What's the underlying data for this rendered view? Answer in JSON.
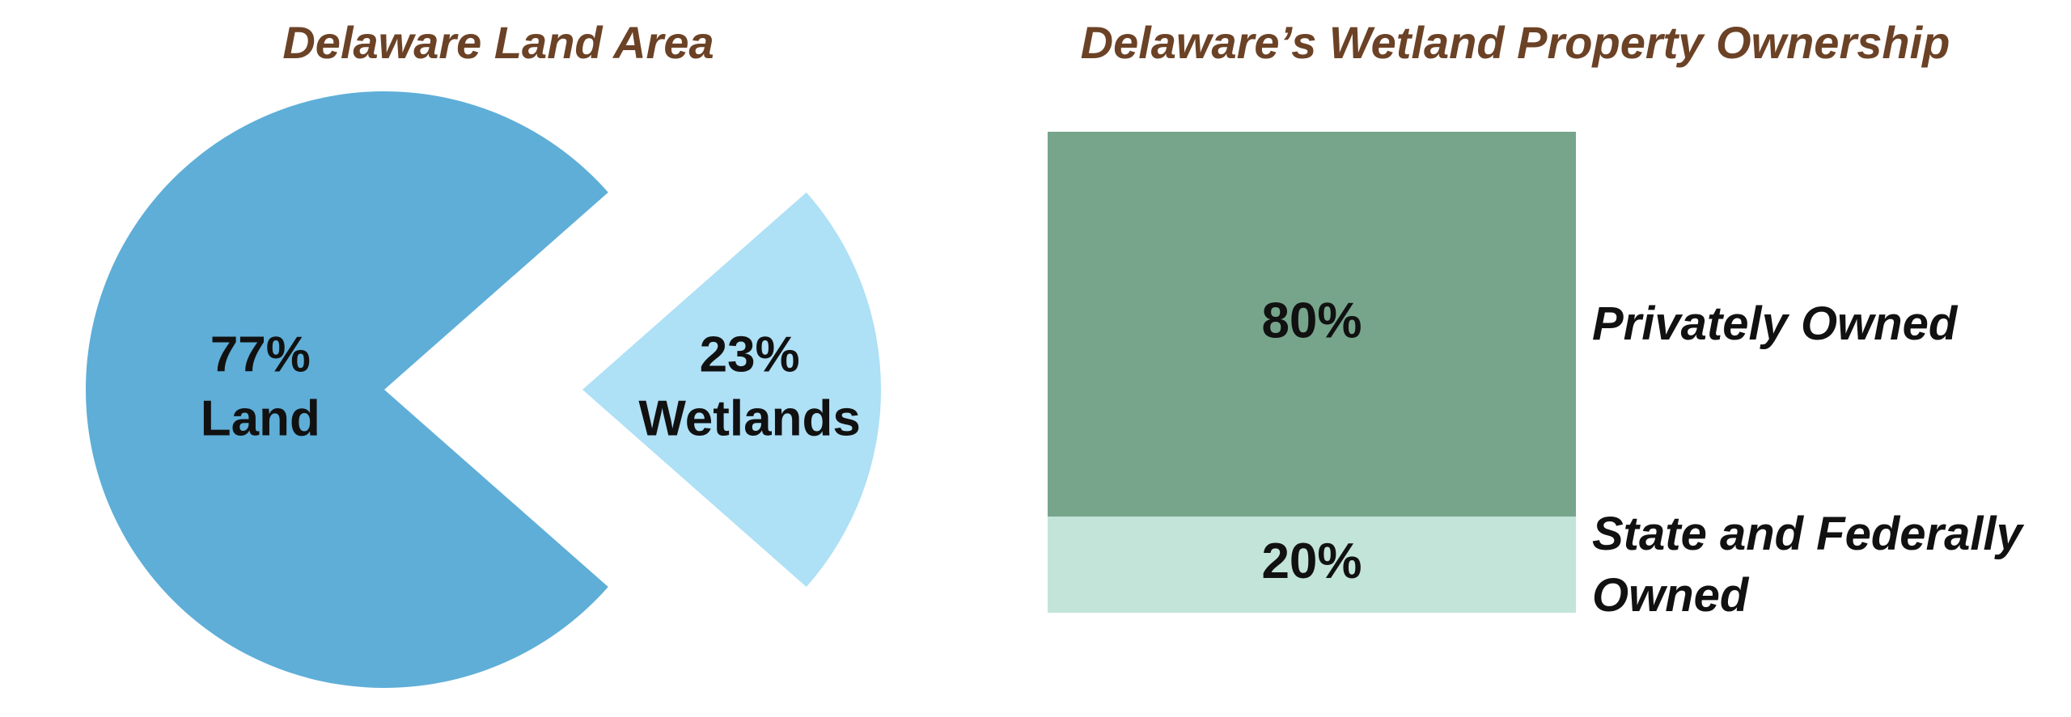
{
  "chart_data": [
    {
      "type": "pie",
      "title": "Delaware Land Area",
      "categories": [
        "Land",
        "Wetlands"
      ],
      "values": [
        77,
        23
      ],
      "value_labels": [
        "77%",
        "23%"
      ],
      "colors": [
        "#5eaed8",
        "#aee0f6"
      ],
      "exploded": [
        false,
        true
      ]
    },
    {
      "type": "stacked-bar",
      "title": "Delaware’s Wetland Property Ownership",
      "categories": [
        null
      ],
      "series": [
        {
          "name": "Privately Owned",
          "color": "#76a58c",
          "values": [
            80
          ],
          "value_labels": [
            "80%"
          ]
        },
        {
          "name": "State and Federally Owned",
          "color": "#c3e4d9",
          "values": [
            20
          ],
          "value_labels": [
            "20%"
          ]
        }
      ]
    }
  ]
}
